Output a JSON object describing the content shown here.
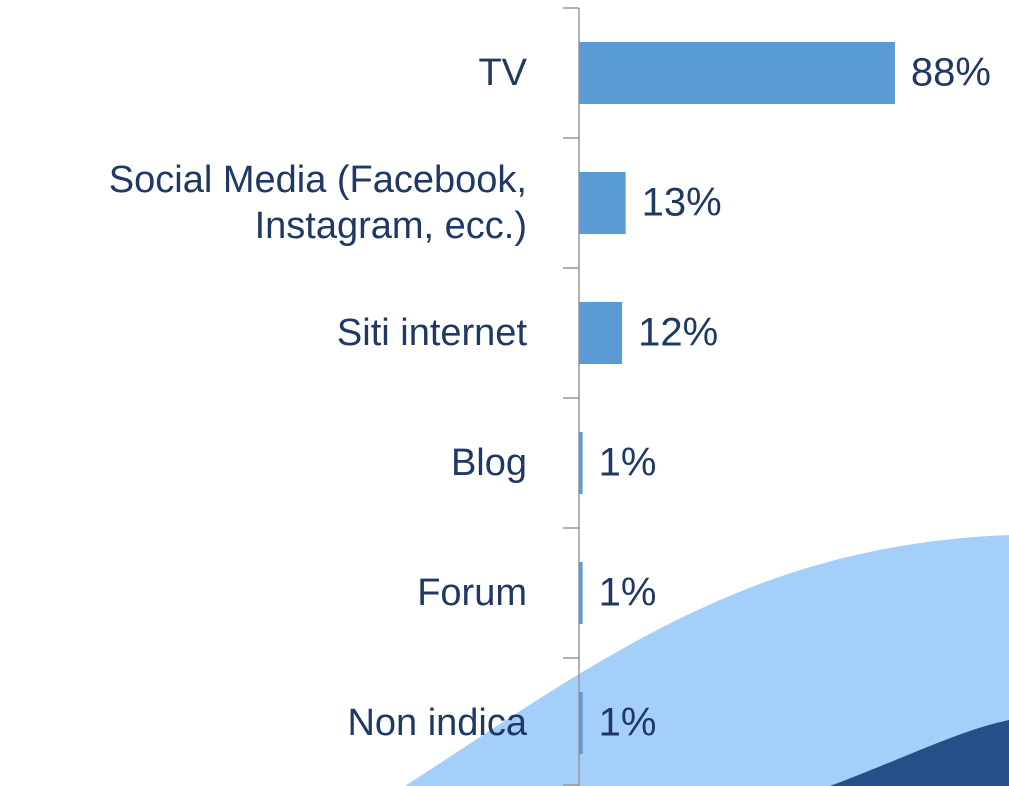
{
  "chart_data": {
    "type": "bar",
    "orientation": "horizontal",
    "categories": [
      "TV",
      "Social Media (Facebook, Instagram, ecc.)",
      "Siti internet",
      "Blog",
      "Forum",
      "Non indica"
    ],
    "values": [
      88,
      13,
      12,
      1,
      1,
      1
    ],
    "value_labels": [
      "88%",
      "13%",
      "12%",
      "1%",
      "1%",
      "1%"
    ],
    "color": "#5b9bd5"
  }
}
